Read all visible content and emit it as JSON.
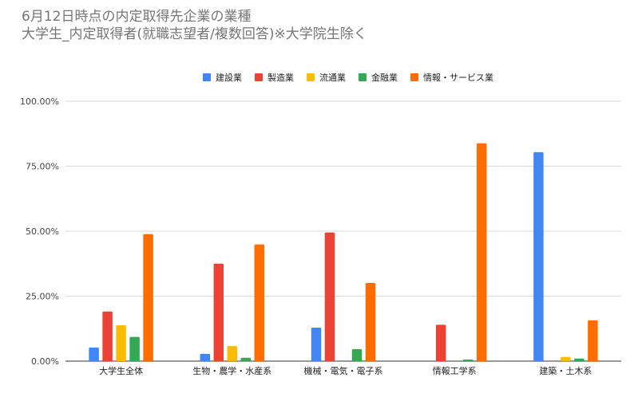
{
  "chart_data": {
    "type": "bar",
    "title": "6月12日時点の内定取得先企業の業種",
    "subtitle": "大学生_内定取得者(就職志望者/複数回答)※大学院生除く",
    "categories": [
      "大学生全体",
      "生物・農学・水産系",
      "機械・電気・電子系",
      "情報工学系",
      "建築・土木系"
    ],
    "series": [
      {
        "name": "建設業",
        "color": "#4285f4",
        "values": [
          5.2,
          2.8,
          12.9,
          0.0,
          80.4
        ]
      },
      {
        "name": "製造業",
        "color": "#ea4335",
        "values": [
          19.1,
          37.5,
          49.5,
          14.0,
          0.0
        ]
      },
      {
        "name": "流通業",
        "color": "#fbbc04",
        "values": [
          13.8,
          5.8,
          0.0,
          0.0,
          1.6
        ]
      },
      {
        "name": "金融業",
        "color": "#34a853",
        "values": [
          9.3,
          1.3,
          4.6,
          0.6,
          1.0
        ]
      },
      {
        "name": "情報・サービス業",
        "color": "#ff6d01",
        "values": [
          48.9,
          44.9,
          30.1,
          83.8,
          15.7
        ]
      }
    ],
    "y_ticks": [
      "0.00%",
      "25.00%",
      "50.00%",
      "75.00%",
      "100.00%"
    ],
    "ylim": [
      0,
      100
    ],
    "grid": true,
    "legend_position": "top-center"
  }
}
